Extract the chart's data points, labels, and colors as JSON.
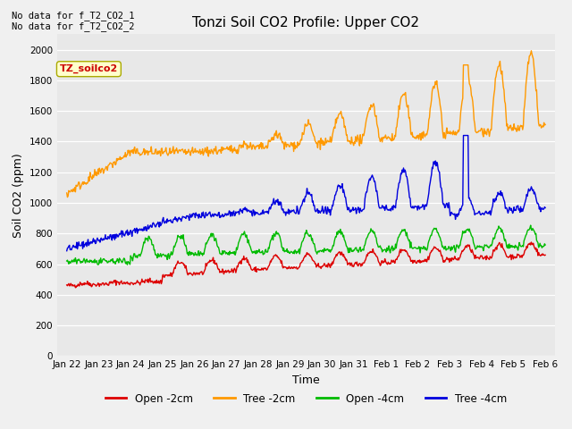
{
  "title": "Tonzi Soil CO2 Profile: Upper CO2",
  "xlabel": "Time",
  "ylabel": "Soil CO2 (ppm)",
  "no_data_text": [
    "No data for f_T2_CO2_1",
    "No data for f_T2_CO2_2"
  ],
  "watermark": "TZ_soilco2",
  "ylim": [
    0,
    2100
  ],
  "yticks": [
    0,
    200,
    400,
    600,
    800,
    1000,
    1200,
    1400,
    1600,
    1800,
    2000
  ],
  "bg_color": "#e8e8e8",
  "fig_color": "#f0f0f0",
  "legend_labels": [
    "Open -2cm",
    "Tree -2cm",
    "Open -4cm",
    "Tree -4cm"
  ],
  "legend_colors": [
    "#dd0000",
    "#ff9900",
    "#00bb00",
    "#0000dd"
  ],
  "xtick_labels": [
    "Jan 22",
    "Jan 23",
    "Jan 24",
    "Jan 25",
    "Jan 26",
    "Jan 27",
    "Jan 28",
    "Jan 29",
    "Jan 30",
    "Jan 31",
    "Feb 1",
    "Feb 2",
    "Feb 3",
    "Feb 4",
    "Feb 5",
    "Feb 6"
  ],
  "xtick_positions": [
    0,
    1,
    2,
    3,
    4,
    5,
    6,
    7,
    8,
    9,
    10,
    11,
    12,
    13,
    14,
    15
  ]
}
